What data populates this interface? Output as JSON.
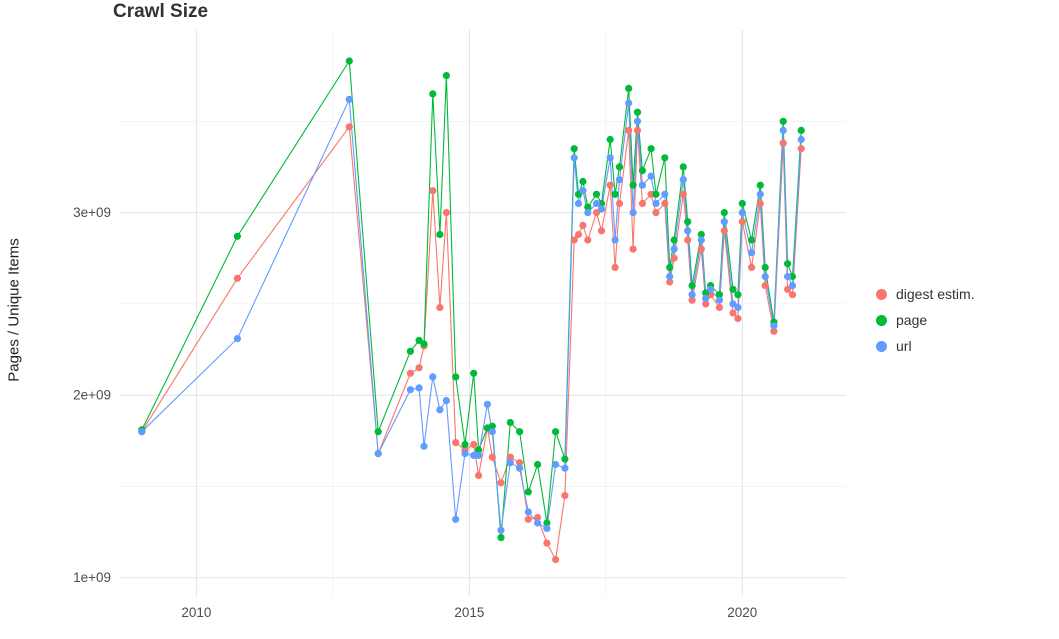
{
  "chart_data": {
    "type": "line-scatter",
    "title": "Crawl Size",
    "ylabel": "Pages / Unique Items",
    "xlabel": "",
    "legend_position": "right",
    "x_domain": [
      2008.6,
      2021.9
    ],
    "y_domain": [
      900000000.0,
      4000000000.0
    ],
    "x_ticks": [
      {
        "value": 2010,
        "label": "2010"
      },
      {
        "value": 2015,
        "label": "2015"
      },
      {
        "value": 2020,
        "label": "2020"
      }
    ],
    "y_ticks": [
      {
        "value": 1000000000.0,
        "label": "1e+09"
      },
      {
        "value": 2000000000.0,
        "label": "2e+09"
      },
      {
        "value": 3000000000.0,
        "label": "3e+09"
      }
    ],
    "x_minor": [
      2012.5,
      2017.5
    ],
    "y_minor": [
      1500000000.0,
      2500000000.0,
      3500000000.0
    ],
    "grid": {
      "major_color": "#e3e3e3",
      "minor_color": "#f1f1f1"
    },
    "x": [
      2009.0,
      2010.75,
      2012.8,
      2013.33,
      2013.92,
      2014.08,
      2014.17,
      2014.33,
      2014.46,
      2014.58,
      2014.75,
      2014.92,
      2015.08,
      2015.17,
      2015.33,
      2015.42,
      2015.58,
      2015.75,
      2015.92,
      2016.08,
      2016.25,
      2016.42,
      2016.58,
      2016.75,
      2016.92,
      2017.0,
      2017.08,
      2017.17,
      2017.33,
      2017.42,
      2017.58,
      2017.67,
      2017.75,
      2017.92,
      2018.0,
      2018.08,
      2018.17,
      2018.33,
      2018.42,
      2018.58,
      2018.67,
      2018.75,
      2018.92,
      2019.0,
      2019.08,
      2019.25,
      2019.33,
      2019.42,
      2019.58,
      2019.67,
      2019.83,
      2019.92,
      2020.0,
      2020.17,
      2020.33,
      2020.42,
      2020.58,
      2020.75,
      2020.83,
      2020.92,
      2021.08
    ],
    "series": [
      {
        "name": "digest estim.",
        "color": "#F8766D",
        "values": [
          1800000000.0,
          2640000000.0,
          3470000000.0,
          1680000000.0,
          2120000000.0,
          2150000000.0,
          2270000000.0,
          3120000000.0,
          2480000000.0,
          3000000000.0,
          1740000000.0,
          1700000000.0,
          1730000000.0,
          1560000000.0,
          1820000000.0,
          1660000000.0,
          1520000000.0,
          1660000000.0,
          1630000000.0,
          1320000000.0,
          1330000000.0,
          1190000000.0,
          1100000000.0,
          1450000000.0,
          2850000000.0,
          2880000000.0,
          2930000000.0,
          2850000000.0,
          3000000000.0,
          2900000000.0,
          3150000000.0,
          2700000000.0,
          3050000000.0,
          3450000000.0,
          2800000000.0,
          3450000000.0,
          3050000000.0,
          3100000000.0,
          3000000000.0,
          3050000000.0,
          2620000000.0,
          2750000000.0,
          3100000000.0,
          2850000000.0,
          2520000000.0,
          2800000000.0,
          2500000000.0,
          2550000000.0,
          2480000000.0,
          2900000000.0,
          2450000000.0,
          2420000000.0,
          2950000000.0,
          2700000000.0,
          3050000000.0,
          2600000000.0,
          2350000000.0,
          3380000000.0,
          2580000000.0,
          2550000000.0,
          3350000000.0
        ]
      },
      {
        "name": "page",
        "color": "#00BA38",
        "values": [
          1810000000.0,
          2870000000.0,
          3830000000.0,
          1800000000.0,
          2240000000.0,
          2300000000.0,
          2280000000.0,
          3650000000.0,
          2880000000.0,
          3750000000.0,
          2100000000.0,
          1730000000.0,
          2120000000.0,
          1700000000.0,
          1820000000.0,
          1830000000.0,
          1220000000.0,
          1850000000.0,
          1800000000.0,
          1470000000.0,
          1620000000.0,
          1300000000.0,
          1800000000.0,
          1650000000.0,
          3350000000.0,
          3100000000.0,
          3170000000.0,
          3030000000.0,
          3100000000.0,
          3050000000.0,
          3400000000.0,
          3100000000.0,
          3250000000.0,
          3680000000.0,
          3150000000.0,
          3550000000.0,
          3230000000.0,
          3350000000.0,
          3100000000.0,
          3300000000.0,
          2700000000.0,
          2850000000.0,
          3250000000.0,
          2950000000.0,
          2600000000.0,
          2880000000.0,
          2560000000.0,
          2600000000.0,
          2550000000.0,
          3000000000.0,
          2580000000.0,
          2550000000.0,
          3050000000.0,
          2850000000.0,
          3150000000.0,
          2700000000.0,
          2400000000.0,
          3500000000.0,
          2720000000.0,
          2650000000.0,
          3450000000.0
        ]
      },
      {
        "name": "url",
        "color": "#619CFF",
        "values": [
          1800000000.0,
          2310000000.0,
          3620000000.0,
          1680000000.0,
          2030000000.0,
          2040000000.0,
          1720000000.0,
          2100000000.0,
          1920000000.0,
          1970000000.0,
          1320000000.0,
          1680000000.0,
          1670000000.0,
          1670000000.0,
          1950000000.0,
          1800000000.0,
          1260000000.0,
          1630000000.0,
          1600000000.0,
          1360000000.0,
          1300000000.0,
          1270000000.0,
          1620000000.0,
          1600000000.0,
          3300000000.0,
          3050000000.0,
          3120000000.0,
          3000000000.0,
          3050000000.0,
          3020000000.0,
          3300000000.0,
          2850000000.0,
          3180000000.0,
          3600000000.0,
          3000000000.0,
          3500000000.0,
          3150000000.0,
          3200000000.0,
          3050000000.0,
          3100000000.0,
          2650000000.0,
          2800000000.0,
          3180000000.0,
          2900000000.0,
          2550000000.0,
          2850000000.0,
          2530000000.0,
          2580000000.0,
          2520000000.0,
          2950000000.0,
          2500000000.0,
          2480000000.0,
          3000000000.0,
          2780000000.0,
          3100000000.0,
          2650000000.0,
          2380000000.0,
          3450000000.0,
          2650000000.0,
          2600000000.0,
          3400000000.0
        ]
      }
    ]
  }
}
